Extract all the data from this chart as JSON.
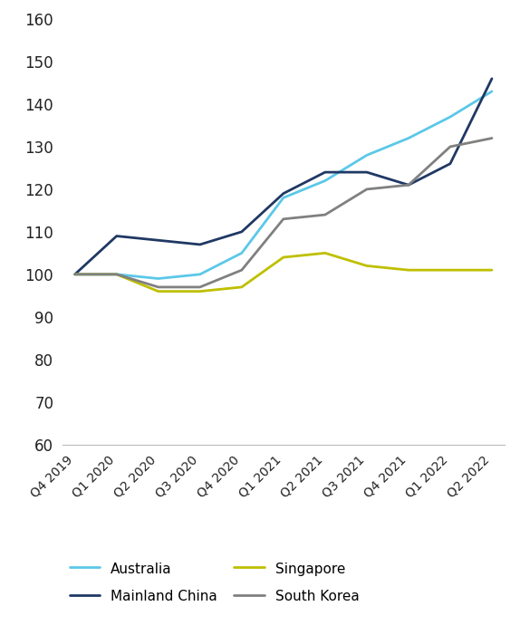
{
  "x_labels": [
    "Q4 2019",
    "Q1 2020",
    "Q2 2020",
    "Q3 2020",
    "Q4 2020",
    "Q1 2021",
    "Q2 2021",
    "Q3 2021",
    "Q4 2021",
    "Q1 2022",
    "Q2 2022"
  ],
  "series": {
    "Australia": [
      100,
      100,
      99,
      100,
      105,
      118,
      122,
      128,
      132,
      137,
      143
    ],
    "Mainland China": [
      100,
      109,
      108,
      107,
      110,
      119,
      124,
      124,
      121,
      126,
      146
    ],
    "Singapore": [
      100,
      100,
      96,
      96,
      97,
      104,
      105,
      102,
      101,
      101,
      101
    ],
    "South Korea": [
      100,
      100,
      97,
      97,
      101,
      113,
      114,
      120,
      121,
      130,
      132
    ]
  },
  "colors": {
    "Australia": "#5BC8E8",
    "Mainland China": "#1F3864",
    "Singapore": "#BFBF00",
    "South Korea": "#808080"
  },
  "ylim": [
    60,
    160
  ],
  "yticks": [
    60,
    70,
    80,
    90,
    100,
    110,
    120,
    130,
    140,
    150,
    160
  ],
  "linewidth": 2.0,
  "figsize": [
    5.74,
    7.01
  ],
  "dpi": 100,
  "legend_order": [
    "Australia",
    "Mainland China",
    "Singapore",
    "South Korea"
  ],
  "background_color": "#ffffff",
  "axis_color": "#bbbbbb"
}
